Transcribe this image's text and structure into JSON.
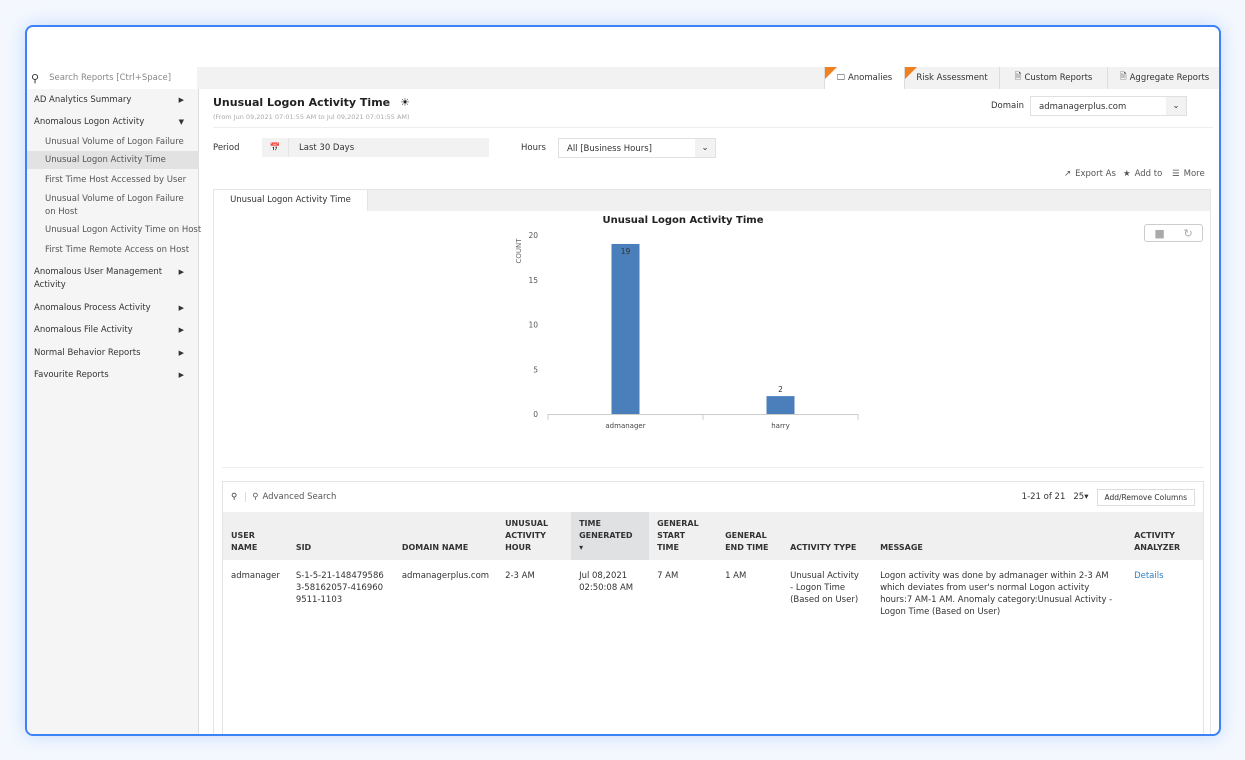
{
  "search": {
    "placeholder": "Search Reports [Ctrl+Space]"
  },
  "top_tabs": [
    {
      "label": "Anomalies",
      "new": true,
      "active": true
    },
    {
      "label": "Risk Assessment",
      "new": true
    },
    {
      "label": "Custom Reports"
    },
    {
      "label": "Aggregate Reports"
    }
  ],
  "sidebar": {
    "items": [
      {
        "label": "AD Analytics Summary"
      },
      {
        "label": "Anomalous Logon Activity",
        "expanded": true
      },
      {
        "label": "Unusual Volume of Logon Failure"
      },
      {
        "label": "Unusual Logon Activity Time",
        "selected": true
      },
      {
        "label": "First Time Host Accessed by User"
      },
      {
        "label": "Unusual Volume of Logon Failure on Host"
      },
      {
        "label": "Unusual Logon Activity Time on Host"
      },
      {
        "label": "First Time Remote Access on Host"
      },
      {
        "label": "Anomalous User Management Activity"
      },
      {
        "label": "Anomalous Process Activity"
      },
      {
        "label": "Anomalous File Activity"
      },
      {
        "label": "Normal Behavior Reports"
      },
      {
        "label": "Favourite Reports"
      }
    ]
  },
  "header": {
    "title": "Unusual Logon Activity Time",
    "subtitle": "(From Jun 09,2021 07:01:55 AM to Jul 09,2021 07:01:55 AM)",
    "domain_label": "Domain",
    "domain_value": "admanagerplus.com"
  },
  "filters": {
    "period_label": "Period",
    "period_value": "Last 30 Days",
    "hours_label": "Hours",
    "hours_value": "All [Business Hours]"
  },
  "actions": {
    "export": "Export As",
    "add": "Add to",
    "more": "More"
  },
  "report_tab": "Unusual Logon Activity Time",
  "chart_data": {
    "type": "bar",
    "title": "Unusual Logon Activity Time",
    "ylabel": "COUNT",
    "xlabel": "",
    "categories": [
      "admanager",
      "harry"
    ],
    "values": [
      19,
      2
    ],
    "ylim": [
      0,
      20
    ],
    "yticks": [
      0,
      5,
      10,
      15,
      20
    ],
    "color": "#4a7fbb"
  },
  "grid": {
    "advanced_search": "Advanced Search",
    "pagination": "1-21 of 21",
    "page_size": "25",
    "add_remove": "Add/Remove Columns",
    "columns": [
      "USER NAME",
      "SID",
      "DOMAIN NAME",
      "UNUSUAL ACTIVITY HOUR",
      "TIME GENERATED",
      "GENERAL START TIME",
      "GENERAL END TIME",
      "ACTIVITY TYPE",
      "MESSAGE",
      "ACTIVITY ANALYZER"
    ],
    "rows": [
      [
        "admanager",
        "S-1-5-21-1484795863-58162057-4169609511-1103",
        "admanagerplus.com",
        "2-3 AM",
        "Jul 08,2021 02:50:08 AM",
        "7 AM",
        "1 AM",
        "Unusual Activity - Logon Time (Based on User)",
        "Logon activity was done by admanager within 2-3 AM which deviates from user's normal Logon activity hours:7 AM-1 AM. Anomaly category:Unusual Activity -Logon Time (Based on User)",
        "Details"
      ]
    ]
  },
  "colors": {
    "accent": "#2f7fc1",
    "frame": "#3b82f6",
    "new_flag": "#f08020"
  }
}
